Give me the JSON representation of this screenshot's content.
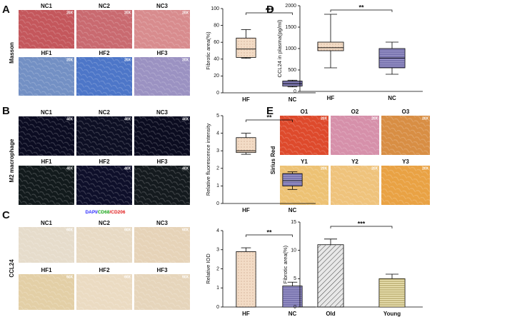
{
  "letters": [
    "A",
    "B",
    "C",
    "D",
    "E"
  ],
  "image_grids": [
    {
      "side_label": "Masson",
      "tiles": [
        {
          "label": "NC1",
          "mag": "20X",
          "color": "#c4575c"
        },
        {
          "label": "NC2",
          "mag": "20X",
          "color": "#c96a70"
        },
        {
          "label": "NC3",
          "mag": "20X",
          "color": "#d88c8e"
        },
        {
          "label": "HF1",
          "mag": "20X",
          "color": "#7390c4"
        },
        {
          "label": "HF2",
          "mag": "20X",
          "color": "#4d76c8"
        },
        {
          "label": "HF3",
          "mag": "20X",
          "color": "#9b92c2"
        }
      ]
    },
    {
      "side_label": "M2 macrophage",
      "tiles": [
        {
          "label": "NC1",
          "mag": "40X",
          "color": "#0b0c22"
        },
        {
          "label": "NC2",
          "mag": "40X",
          "color": "#0d0f24"
        },
        {
          "label": "NC3",
          "mag": "40X",
          "color": "#0b0c20"
        },
        {
          "label": "HF1",
          "mag": "40X",
          "color": "#121a1c"
        },
        {
          "label": "HF2",
          "mag": "40X",
          "color": "#0e0f2a"
        },
        {
          "label": "HF3",
          "mag": "40X",
          "color": "#141a1e"
        }
      ],
      "caption": [
        {
          "text": "DAPI/",
          "color": "#2b2bff"
        },
        {
          "text": "CD68",
          "color": "#1aa51a"
        },
        {
          "text": "/CD206",
          "color": "#e01a1a"
        }
      ]
    },
    {
      "side_label": "CCL24",
      "tiles": [
        {
          "label": "NC1",
          "mag": "60X",
          "color": "#e6dccb"
        },
        {
          "label": "NC2",
          "mag": "60X",
          "color": "#e8dac4"
        },
        {
          "label": "NC3",
          "mag": "60X",
          "color": "#e6d3b8"
        },
        {
          "label": "HF1",
          "mag": "60X",
          "color": "#e3cfa6"
        },
        {
          "label": "HF2",
          "mag": "60X",
          "color": "#ebdbc2"
        },
        {
          "label": "HF3",
          "mag": "60X",
          "color": "#e6d5bb"
        }
      ]
    },
    {
      "side_label": "Sirius Red",
      "tiles": [
        {
          "label": "O1",
          "mag": "20X",
          "color": "#de4a2c"
        },
        {
          "label": "O2",
          "mag": "20X",
          "color": "#d690aa"
        },
        {
          "label": "O3",
          "mag": "20X",
          "color": "#d88e44"
        },
        {
          "label": "Y1",
          "mag": "20X",
          "color": "#edc274"
        },
        {
          "label": "Y2",
          "mag": "20X",
          "color": "#efc37c"
        },
        {
          "label": "Y3",
          "mag": "20X",
          "color": "#e9a244"
        }
      ]
    }
  ],
  "chart_data": [
    {
      "type": "box",
      "y_label": "Fibrotic area(%)",
      "categories": [
        "HF",
        "NC"
      ],
      "boxes": [
        {
          "min": 41,
          "q1": 42,
          "median": 52,
          "q3": 65,
          "max": 75
        },
        {
          "min": 7,
          "q1": 8,
          "median": 11,
          "q3": 14,
          "max": 15
        }
      ],
      "colors": [
        "#f3dcc6",
        "#9c97c9"
      ],
      "hatch": [
        "dots",
        "stripes"
      ],
      "ylim": [
        0,
        100
      ],
      "yticks": [
        0,
        20,
        40,
        60,
        80,
        100
      ],
      "annotation": "***"
    },
    {
      "type": "box",
      "y_label": "Relative fluorescence intensity",
      "categories": [
        "HF",
        "NC"
      ],
      "boxes": [
        {
          "min": 2.8,
          "q1": 2.9,
          "median": 3.0,
          "q3": 3.75,
          "max": 4.0
        },
        {
          "min": 0.8,
          "q1": 1.0,
          "median": 1.3,
          "q3": 1.7,
          "max": 1.8
        }
      ],
      "colors": [
        "#f3dcc6",
        "#9c97c9"
      ],
      "hatch": [
        "dots",
        "stripes"
      ],
      "ylim": [
        0,
        5
      ],
      "yticks": [
        0,
        1,
        2,
        3,
        4,
        5
      ],
      "annotation": "**"
    },
    {
      "type": "bar",
      "y_label": "Relative IOD",
      "categories": [
        "HF",
        "NC"
      ],
      "values": [
        2.9,
        1.1
      ],
      "errors": [
        0.2,
        0.2
      ],
      "colors": [
        "#f3dcc6",
        "#9c97c9"
      ],
      "hatch": [
        "dots",
        "stripes"
      ],
      "ylim": [
        0,
        4
      ],
      "yticks": [
        0,
        1,
        2,
        3,
        4
      ],
      "annotation": "**"
    },
    {
      "type": "box",
      "y_label": "CCL24 in plasma(pg/ml)",
      "categories": [
        "HF",
        "NC"
      ],
      "boxes": [
        {
          "min": 550,
          "q1": 950,
          "median": 1020,
          "q3": 1150,
          "max": 1800
        },
        {
          "min": 400,
          "q1": 550,
          "median": 780,
          "q3": 1000,
          "max": 1150
        }
      ],
      "colors": [
        "#f3dcc6",
        "#9c97c9"
      ],
      "hatch": [
        "dots",
        "stripes"
      ],
      "ylim": [
        0,
        2000
      ],
      "yticks": [
        0,
        500,
        1000,
        1500,
        2000
      ],
      "annotation": "**"
    },
    {
      "type": "bar",
      "y_label": "Fibrotic area(%)",
      "categories": [
        "Old",
        "Young"
      ],
      "values": [
        11,
        5
      ],
      "errors": [
        1,
        0.8
      ],
      "colors": [
        "#e8e8e8",
        "#efe6b8"
      ],
      "hatch": [
        "diag",
        "hlines"
      ],
      "ylim": [
        0,
        15
      ],
      "yticks": [
        0,
        5,
        10,
        15
      ],
      "annotation": "***"
    }
  ]
}
